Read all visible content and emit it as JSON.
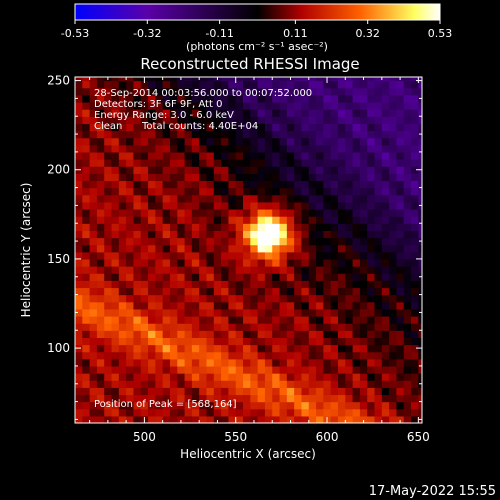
{
  "chart_data": {
    "type": "heatmap",
    "title": "Reconstructed RHESSI Image",
    "xlabel": "Heliocentric X (arcsec)",
    "ylabel": "Heliocentric Y (arcsec)",
    "xlim": [
      462,
      652
    ],
    "ylim": [
      58,
      252
    ],
    "x_ticks": [
      500,
      550,
      600,
      650
    ],
    "y_ticks": [
      100,
      150,
      200,
      250
    ],
    "colorbar": {
      "min": -0.53,
      "max": 0.53,
      "ticks": [
        -0.53,
        -0.32,
        -0.11,
        0.11,
        0.32,
        0.53
      ],
      "tick_labels": [
        "-0.53",
        "-0.32",
        "-0.11",
        "0.11",
        "0.32",
        "0.53"
      ],
      "unit_label": "(photons cm⁻² s⁻¹ asec⁻²)",
      "colormap": [
        "#0000ff",
        "#5a00a8",
        "#000000",
        "#b00000",
        "#ff6000",
        "#ffff60",
        "#ffffff"
      ]
    },
    "annotations": {
      "time_range": "28-Sep-2014 00:03:56.000 to 00:07:52.000",
      "detectors": "Detectors: 3F 6F 9F, Att 0",
      "energy_range": "Energy Range: 3.0 - 6.0 keV",
      "method": "Clean",
      "total_counts": "Total counts: 4.40E+04",
      "peak": "Position of Peak = [568,164]"
    },
    "peak_position": [
      568,
      164
    ]
  },
  "footer": {
    "date": "17-May-2022 15:55"
  }
}
